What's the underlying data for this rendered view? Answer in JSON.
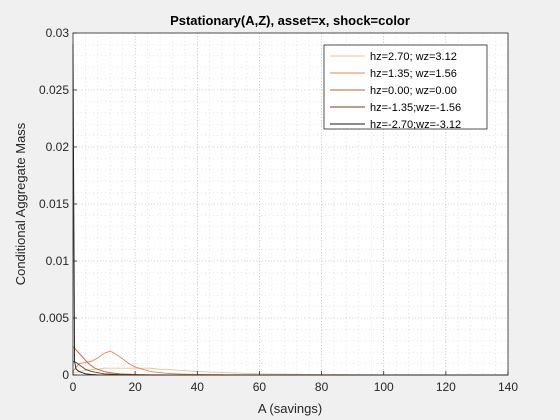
{
  "chart_data": {
    "type": "line",
    "title": "Pstationary(A,Z), asset=x, shock=color",
    "xlabel": "A (savings)",
    "ylabel": "Conditional Aggregate Mass",
    "xlim": [
      0,
      140
    ],
    "ylim": [
      0,
      0.03
    ],
    "xticks": [
      0,
      20,
      40,
      60,
      80,
      100,
      120,
      140
    ],
    "yticks": [
      0,
      0.005,
      0.01,
      0.015,
      0.02,
      0.025,
      0.03
    ],
    "xtick_labels": [
      "0",
      "20",
      "40",
      "60",
      "80",
      "100",
      "120",
      "140"
    ],
    "ytick_labels": [
      "0",
      "0.005",
      "0.01",
      "0.015",
      "0.02",
      "0.025",
      "0.03"
    ],
    "grid": true,
    "minor_grid": true,
    "legend_position": "top-right",
    "series": [
      {
        "name": "hz=2.70; wz=3.12",
        "color": "#f2c08c",
        "x": [
          0,
          2,
          4,
          6,
          8,
          10,
          12,
          15,
          18,
          20,
          22,
          25,
          28,
          30,
          35,
          40,
          50,
          60,
          70,
          80,
          100,
          120,
          140
        ],
        "y": [
          0.0002,
          0.0003,
          0.0004,
          0.0005,
          0.0005,
          0.0006,
          0.0006,
          0.0006,
          0.0006,
          0.0006,
          0.0006,
          0.0006,
          0.0005,
          0.0005,
          0.0004,
          0.0003,
          0.0002,
          0.0001,
          7e-05,
          4e-05,
          2e-05,
          1e-05,
          5e-06
        ]
      },
      {
        "name": "hz=1.35; wz=1.56",
        "color": "#e8864a",
        "x": [
          0,
          1,
          2,
          4,
          6,
          8,
          10,
          12,
          14,
          16,
          18,
          20,
          25,
          30,
          35,
          40,
          50,
          60,
          80,
          100,
          140
        ],
        "y": [
          0.0003,
          0.0007,
          0.001,
          0.0011,
          0.0012,
          0.0015,
          0.0019,
          0.0021,
          0.0018,
          0.0014,
          0.001,
          0.0007,
          0.0003,
          0.00015,
          8e-05,
          5e-05,
          2e-05,
          1e-05,
          5e-06,
          2e-06,
          0
        ]
      },
      {
        "name": "hz=0.00; wz=0.00",
        "color": "#c0612c",
        "x": [
          0,
          1,
          2,
          3,
          4,
          5,
          6,
          7,
          8,
          10,
          12,
          15,
          20,
          25,
          30,
          40,
          60,
          100,
          140
        ],
        "y": [
          0.0025,
          0.0022,
          0.0019,
          0.0016,
          0.0013,
          0.001,
          0.0008,
          0.0006,
          0.0005,
          0.0003,
          0.0002,
          0.0001,
          5e-05,
          2e-05,
          1e-05,
          5e-06,
          0,
          0,
          0
        ]
      },
      {
        "name": "hz=-1.35;wz=-1.56",
        "color": "#7a3a18",
        "x": [
          0,
          1,
          2,
          3,
          4,
          5,
          6,
          8,
          10,
          15,
          20,
          30,
          60,
          140
        ],
        "y": [
          0.0012,
          0.0011,
          0.0009,
          0.0007,
          0.0005,
          0.0004,
          0.0003,
          0.0002,
          0.0001,
          4e-05,
          1e-05,
          0,
          0,
          0
        ]
      },
      {
        "name": "hz=-2.70;wz=-3.12",
        "color": "#1a1a1a",
        "x": [
          0,
          0.5,
          1,
          2,
          3,
          4,
          6,
          8,
          10,
          20,
          60,
          140
        ],
        "y": [
          0.029,
          0.0012,
          0.0005,
          0.0003,
          0.0002,
          0.0001,
          5e-05,
          2e-05,
          1e-05,
          0,
          0,
          0
        ]
      }
    ]
  }
}
